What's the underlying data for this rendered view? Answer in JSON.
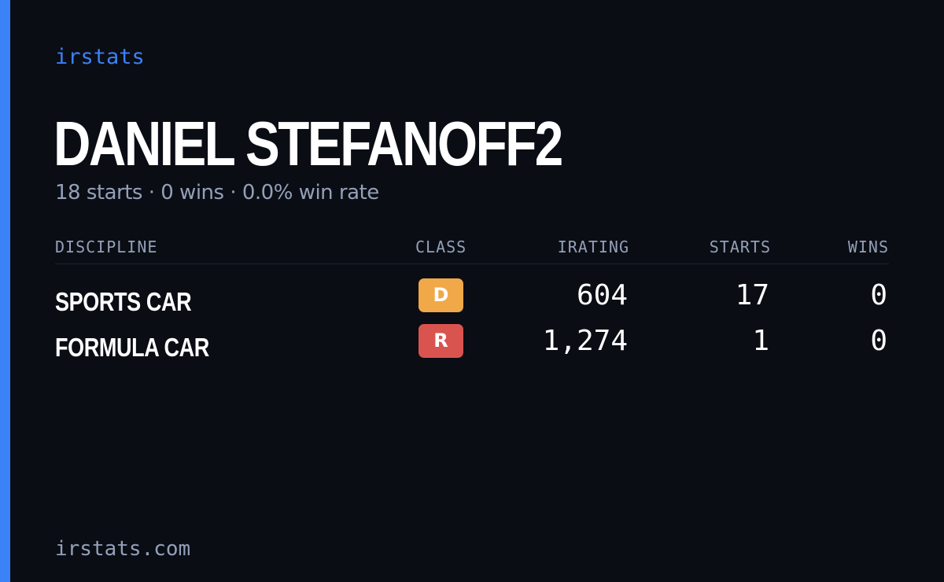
{
  "brand": "irstats",
  "driver": {
    "name": "DANIEL STEFANOFF2",
    "summary": "18 starts · 0 wins · 0.0% win rate"
  },
  "table": {
    "headers": {
      "discipline": "DISCIPLINE",
      "class": "CLASS",
      "irating": "IRATING",
      "starts": "STARTS",
      "wins": "WINS"
    },
    "rows": [
      {
        "discipline": "SPORTS CAR",
        "class": "D",
        "class_color": "#f0a848",
        "irating": "604",
        "starts": "17",
        "wins": "0"
      },
      {
        "discipline": "FORMULA CAR",
        "class": "R",
        "class_color": "#d9534f",
        "irating": "1,274",
        "starts": "1",
        "wins": "0"
      }
    ]
  },
  "footer": "irstats.com",
  "colors": {
    "background": "#0a0d14",
    "accent": "#3b82f6",
    "muted_text": "#94a0b8"
  }
}
